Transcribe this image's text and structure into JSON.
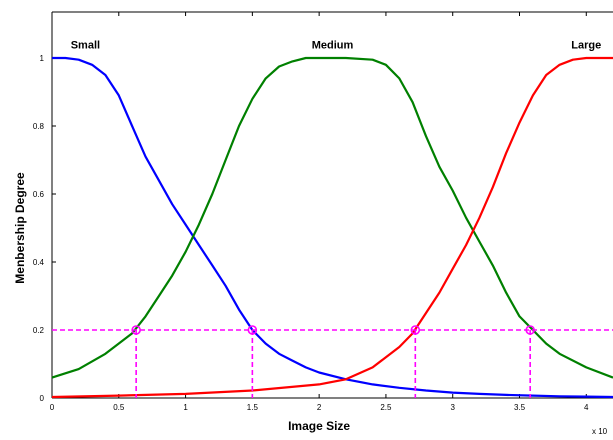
{
  "chart_data": {
    "type": "line",
    "title": "",
    "xlabel": "Image Size",
    "ylabel": "Menbership Degree",
    "x_exponent_label": "x 10",
    "xlim": [
      0,
      4.2
    ],
    "ylim": [
      0,
      1.1
    ],
    "x_ticks": [
      0,
      0.5,
      1,
      1.5,
      2,
      2.5,
      3,
      3.5,
      4
    ],
    "x_tick_labels": [
      "0",
      "0.5",
      "1",
      "1.5",
      "2",
      "2.5",
      "3",
      "3.5",
      "4"
    ],
    "y_ticks": [
      0,
      0.2,
      0.4,
      0.6,
      0.8,
      1
    ],
    "y_tick_labels": [
      "0",
      "0.2",
      "0.4",
      "0.6",
      "0.8",
      "1"
    ],
    "grid": false,
    "series": [
      {
        "color": "#0000ff",
        "x": [
          0,
          0.1,
          0.2,
          0.3,
          0.4,
          0.5,
          0.6,
          0.7,
          0.8,
          0.9,
          1.0,
          1.1,
          1.2,
          1.3,
          1.4,
          1.5,
          1.6,
          1.7,
          1.8,
          1.9,
          2.0,
          2.2,
          2.4,
          2.6,
          2.8,
          3.0,
          3.2,
          3.4,
          3.6,
          3.8,
          4.0,
          4.2
        ],
        "y": [
          1.0,
          1.0,
          0.995,
          0.98,
          0.95,
          0.89,
          0.8,
          0.71,
          0.64,
          0.57,
          0.51,
          0.45,
          0.39,
          0.33,
          0.26,
          0.2,
          0.16,
          0.13,
          0.11,
          0.09,
          0.075,
          0.055,
          0.04,
          0.03,
          0.022,
          0.016,
          0.012,
          0.009,
          0.007,
          0.005,
          0.004,
          0.003
        ]
      },
      {
        "color": "#008000",
        "x": [
          0,
          0.2,
          0.4,
          0.6,
          0.7,
          0.8,
          0.9,
          1.0,
          1.1,
          1.2,
          1.3,
          1.4,
          1.5,
          1.6,
          1.7,
          1.8,
          1.9,
          2.0,
          2.2,
          2.4,
          2.5,
          2.6,
          2.7,
          2.8,
          2.9,
          3.0,
          3.1,
          3.2,
          3.3,
          3.4,
          3.5,
          3.6,
          3.7,
          3.8,
          4.0,
          4.2
        ],
        "y": [
          0.06,
          0.085,
          0.13,
          0.19,
          0.24,
          0.3,
          0.36,
          0.43,
          0.51,
          0.6,
          0.7,
          0.8,
          0.88,
          0.94,
          0.975,
          0.99,
          1.0,
          1.0,
          1.0,
          0.995,
          0.98,
          0.94,
          0.87,
          0.77,
          0.68,
          0.61,
          0.53,
          0.46,
          0.39,
          0.31,
          0.24,
          0.2,
          0.16,
          0.13,
          0.09,
          0.06
        ]
      },
      {
        "color": "#ff0000",
        "x": [
          0,
          0.5,
          1.0,
          1.5,
          2.0,
          2.2,
          2.4,
          2.5,
          2.6,
          2.7,
          2.8,
          2.9,
          3.0,
          3.1,
          3.2,
          3.3,
          3.4,
          3.5,
          3.6,
          3.7,
          3.8,
          3.9,
          4.0,
          4.2
        ],
        "y": [
          0.003,
          0.007,
          0.012,
          0.022,
          0.04,
          0.055,
          0.09,
          0.12,
          0.15,
          0.19,
          0.25,
          0.31,
          0.38,
          0.45,
          0.53,
          0.62,
          0.72,
          0.81,
          0.89,
          0.95,
          0.98,
          0.995,
          1.0,
          1.0
        ]
      }
    ],
    "annotations": [
      {
        "text": "Small",
        "x": 0.25,
        "y": 1.04
      },
      {
        "text": "Medium",
        "x": 2.1,
        "y": 1.04
      },
      {
        "text": "Large",
        "x": 4.0,
        "y": 1.04
      }
    ],
    "threshold": {
      "y": 0.2,
      "color": "#ff00ff",
      "crossing_x": [
        0.63,
        1.5,
        2.72,
        3.58
      ]
    }
  }
}
